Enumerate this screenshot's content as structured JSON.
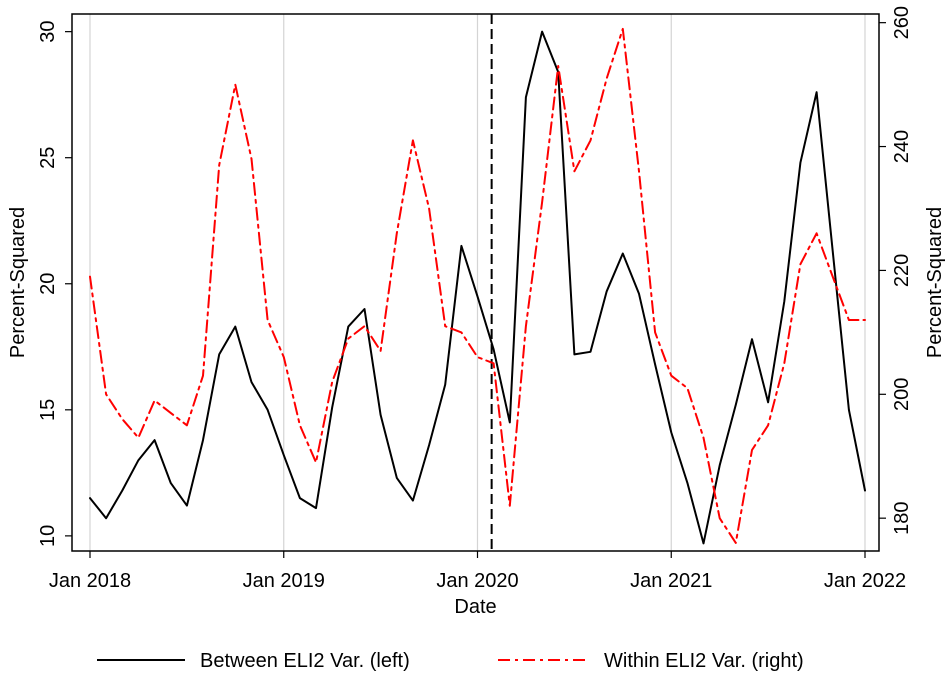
{
  "chart_data": {
    "type": "line",
    "title": "",
    "xlabel": "Date",
    "ylabel_left": "Percent-Squared",
    "ylabel_right": "Percent-Squared",
    "x_ticks": [
      "Jan 2018",
      "Jan 2019",
      "Jan 2020",
      "Jan 2021",
      "Jan 2022"
    ],
    "x_tick_dates": [
      "2018-01",
      "2019-01",
      "2020-01",
      "2021-01",
      "2022-01"
    ],
    "xlim": [
      "2018-01",
      "2022-01"
    ],
    "left_ticks": [
      10,
      15,
      20,
      25,
      30
    ],
    "left_ylim": [
      9.4,
      30.7
    ],
    "right_ticks": [
      180,
      200,
      220,
      240,
      260
    ],
    "right_ylim": [
      174.7,
      261.4
    ],
    "grid": "vertical",
    "reference_line": {
      "date": "2020-02",
      "style": "dashed"
    },
    "legend_position": "bottom",
    "series": [
      {
        "name": "Between ELI2 Var. (left)",
        "axis": "left",
        "color": "#000000",
        "style": "solid",
        "x": [
          "2018-01",
          "2018-02",
          "2018-03",
          "2018-04",
          "2018-05",
          "2018-06",
          "2018-07",
          "2018-08",
          "2018-09",
          "2018-10",
          "2018-11",
          "2018-12",
          "2019-01",
          "2019-02",
          "2019-03",
          "2019-04",
          "2019-05",
          "2019-06",
          "2019-07",
          "2019-08",
          "2019-09",
          "2019-10",
          "2019-11",
          "2019-12",
          "2020-01",
          "2020-02",
          "2020-03",
          "2020-04",
          "2020-05",
          "2020-06",
          "2020-07",
          "2020-08",
          "2020-09",
          "2020-10",
          "2020-11",
          "2020-12",
          "2021-01",
          "2021-02",
          "2021-03",
          "2021-04",
          "2021-05",
          "2021-06",
          "2021-07",
          "2021-08",
          "2021-09",
          "2021-10",
          "2021-11",
          "2021-12",
          "2022-01"
        ],
        "y": [
          11.5,
          10.7,
          11.8,
          13.0,
          13.8,
          12.1,
          11.2,
          13.8,
          17.2,
          18.3,
          16.1,
          15.0,
          13.2,
          11.5,
          11.1,
          15.1,
          18.3,
          19.0,
          14.8,
          12.3,
          11.4,
          13.6,
          16.0,
          21.5,
          19.5,
          17.4,
          14.5,
          27.4,
          30.0,
          28.4,
          17.2,
          17.3,
          19.7,
          21.2,
          19.6,
          16.8,
          14.1,
          12.1,
          9.7,
          12.8,
          15.2,
          17.8,
          15.3,
          19.3,
          24.8,
          27.6,
          21.3,
          15.0,
          11.8
        ]
      },
      {
        "name": "Within ELI2 Var. (right)",
        "axis": "right",
        "color": "#ff0000",
        "style": "dash-dot",
        "x": [
          "2018-01",
          "2018-02",
          "2018-03",
          "2018-04",
          "2018-05",
          "2018-06",
          "2018-07",
          "2018-08",
          "2018-09",
          "2018-10",
          "2018-11",
          "2018-12",
          "2019-01",
          "2019-02",
          "2019-03",
          "2019-04",
          "2019-05",
          "2019-06",
          "2019-07",
          "2019-08",
          "2019-09",
          "2019-10",
          "2019-11",
          "2019-12",
          "2020-01",
          "2020-02",
          "2020-03",
          "2020-04",
          "2020-05",
          "2020-06",
          "2020-07",
          "2020-08",
          "2020-09",
          "2020-10",
          "2020-11",
          "2020-12",
          "2021-01",
          "2021-02",
          "2021-03",
          "2021-04",
          "2021-05",
          "2021-06",
          "2021-07",
          "2021-08",
          "2021-09",
          "2021-10",
          "2021-11",
          "2021-12",
          "2022-01"
        ],
        "y": [
          219,
          200,
          196,
          193,
          199,
          197,
          195,
          203,
          237,
          250,
          238,
          212,
          206,
          195,
          189,
          202,
          209,
          211,
          207,
          226,
          241,
          230,
          211,
          210,
          206,
          205,
          182,
          211,
          231,
          253,
          236,
          241,
          251,
          259,
          236,
          210,
          203,
          201,
          193,
          180,
          176,
          191,
          195,
          205,
          221,
          226,
          219,
          212,
          212
        ]
      }
    ]
  }
}
